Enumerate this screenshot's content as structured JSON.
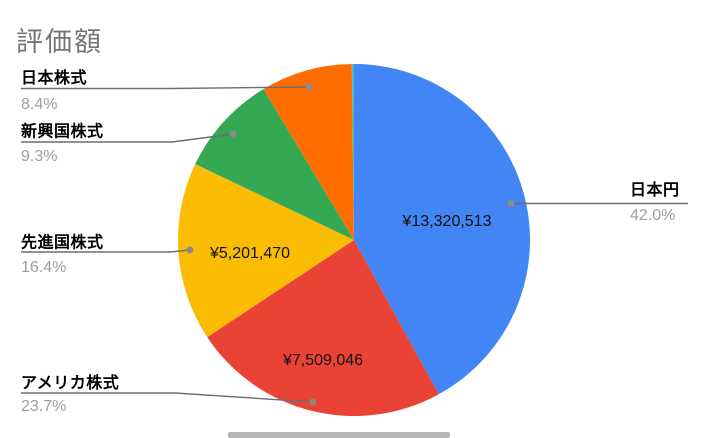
{
  "title": "評価額",
  "chart_data": {
    "type": "pie",
    "title": "評価額",
    "legend_position": "outside-callouts",
    "start_angle_deg": 0,
    "direction": "clockwise",
    "slices": [
      {
        "id": "japanese-yen",
        "label": "日本円",
        "pct": 42.0,
        "pct_label": "42.0%",
        "value_label": "¥13,320,513",
        "color": "#4285f4"
      },
      {
        "id": "us-stocks",
        "label": "アメリカ株式",
        "pct": 23.7,
        "pct_label": "23.7%",
        "value_label": "¥7,509,046",
        "color": "#ea4335"
      },
      {
        "id": "developed-stocks",
        "label": "先進国株式",
        "pct": 16.4,
        "pct_label": "16.4%",
        "value_label": "¥5,201,470",
        "color": "#fbbc04"
      },
      {
        "id": "emerging-stocks",
        "label": "新興国株式",
        "pct": 9.3,
        "pct_label": "9.3%",
        "color": "#34a853"
      },
      {
        "id": "japanese-stocks",
        "label": "日本株式",
        "pct": 8.4,
        "pct_label": "8.4%",
        "color": "#ff6d01"
      },
      {
        "id": "other-sliver",
        "label": "",
        "pct": 0.2,
        "color": "#46bdc6"
      }
    ],
    "palette": {
      "title_text": "#757575",
      "category_text": "#000000",
      "percent_text": "#9e9e9e",
      "leader_line": "#6e6e6e",
      "background": "#ffffff"
    }
  }
}
